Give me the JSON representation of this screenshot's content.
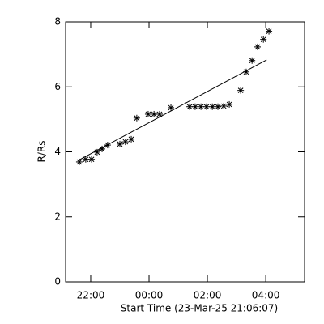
{
  "chart_data": {
    "type": "scatter",
    "xlabel": "Start Time (23-Mar-25 21:06:07)",
    "ylabel": "R/Rs",
    "x": [
      21.61,
      21.83,
      22.03,
      22.22,
      22.39,
      22.58,
      23.0,
      23.19,
      23.39,
      23.58,
      23.97,
      24.17,
      24.36,
      24.75,
      25.39,
      25.58,
      25.78,
      25.97,
      26.17,
      26.36,
      26.56,
      26.75,
      27.14,
      27.33,
      27.53,
      27.72,
      27.92,
      28.11
    ],
    "values": [
      3.69,
      3.77,
      3.77,
      3.99,
      4.09,
      4.21,
      4.24,
      4.31,
      4.39,
      5.04,
      5.16,
      5.16,
      5.16,
      5.36,
      5.39,
      5.39,
      5.39,
      5.39,
      5.39,
      5.39,
      5.41,
      5.46,
      5.89,
      6.46,
      6.81,
      7.23,
      7.46,
      7.71
    ],
    "fit": {
      "x": [
        21.58,
        28.03
      ],
      "values": [
        3.74,
        6.83
      ]
    },
    "color": "#000000",
    "xlim": [
      21.14,
      29.33
    ],
    "xticks": [
      {
        "value": 22,
        "label": "22:00"
      },
      {
        "value": 24,
        "label": "00:00"
      },
      {
        "value": 26,
        "label": "02:00"
      },
      {
        "value": 28,
        "label": "04:00"
      }
    ],
    "ylim": [
      0,
      8
    ],
    "yticks": [
      0,
      2,
      4,
      6,
      8
    ]
  }
}
